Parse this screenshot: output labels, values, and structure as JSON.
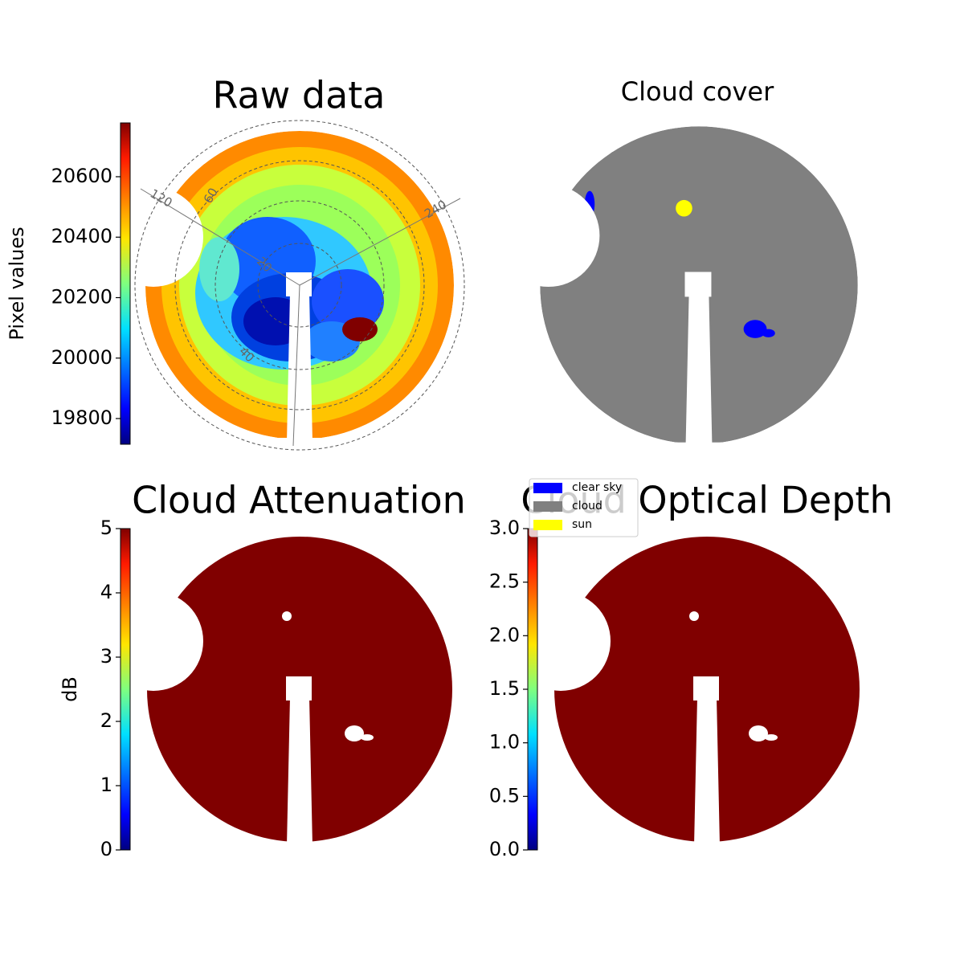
{
  "chart_data": [
    {
      "type": "image",
      "title": "Raw data",
      "ylabel": "Pixel values",
      "colormap": "jet",
      "ylim": [
        19715,
        20778
      ],
      "yticks": [
        19800,
        20000,
        20200,
        20400,
        20600
      ],
      "azimuth_labels": [
        "120",
        "240"
      ],
      "radius_labels": [
        "20",
        "40",
        "60"
      ]
    },
    {
      "type": "image",
      "title": "Cloud cover",
      "legend": [
        {
          "name": "clear sky",
          "color": "#0000ff"
        },
        {
          "name": "cloud",
          "color": "#808080"
        },
        {
          "name": "sun",
          "color": "#ffff00"
        }
      ]
    },
    {
      "type": "image",
      "title": "Cloud Attenuation",
      "ylabel": "dB",
      "colormap": "jet",
      "color": "#800000",
      "ylim": [
        0,
        5
      ],
      "yticks": [
        0,
        1,
        2,
        3,
        4,
        5
      ]
    },
    {
      "type": "image",
      "title": "Cloud Optical Depth",
      "colormap": "jet",
      "color": "#800000",
      "ylim": [
        0,
        3
      ],
      "yticks": [
        {
          "value": 0,
          "label": "0.0"
        },
        0.5,
        {
          "value": 1,
          "label": "1.0"
        },
        1.5,
        {
          "value": 2,
          "label": "2.0"
        },
        2.5,
        {
          "value": 3,
          "label": "3.0"
        }
      ]
    }
  ]
}
